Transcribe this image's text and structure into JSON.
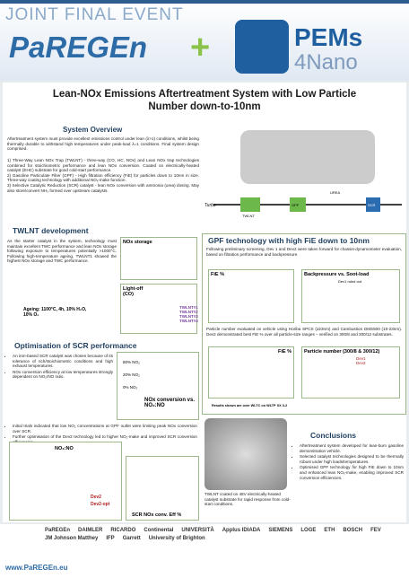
{
  "header": {
    "banner": "JOINT FINAL EVENT",
    "logo_left": "PaREGEn",
    "plus": "+",
    "logo_right_top": "PEMs",
    "logo_right_bottom": "4Nano"
  },
  "title": "Lean-NOx Emissions Aftertreatment System with Low Particle Number down-to-10nm",
  "overview": {
    "heading": "System Overview",
    "intro": "Aftertreatment system must provide excellent emissions control under lean (λ>1) conditions, whilst being thermally durable to withstand high temperatures under peak-load λ=1 conditions. Final system design comprised.",
    "items": [
      "1) Three-Way Lean NOx Trap (TWLNT) - three-way (CO, HC, NOx) and Lean NOx trap technologies combined for stoichiometric performance and lean NOx conversion. Coated on electrically-heated catalyst (EHC) substrate for good cold-start performance.",
      "2) Gasoline Particulate Filter (GPF) - High filtration efficiency (FiE) for particles down to 10nm in size. Three-way coating technology with additional NOₓ-make function.",
      "3) Selective Catalytic Reduction (SCR) catalyst - lean NOx conversion with ammonia (urea) dosing. May also store/convert NH₃ formed over upstream catalysts."
    ]
  },
  "diagram": {
    "turbo": "Turbo",
    "twlnt": "TWLNT",
    "gpf": "GPF",
    "urea": "UREA",
    "scr": "SCR"
  },
  "twlnt": {
    "heading": "TWLNT development",
    "text": "As the starter catalyst in the system, technology must maintain excellent TWC performance and lean NOx storage following exposure to temperatures potentially >1000°C. Following high-temperature ageing, TWLNT1 showed the highest NOx storage and TWC performance.",
    "chart_storage": "NOx storage",
    "chart_lightoff": "Light-off (CO)",
    "ageing": "Ageing: 1100°C, 4h, 10% H₂O, 10% O₂",
    "legend": [
      "TWLNT#1",
      "TWLNT#2",
      "TWLNT#3",
      "TWLNT#4"
    ]
  },
  "gpf": {
    "heading": "GPF technology with high FiE down to 10nm",
    "text1": "Following preliminary screening, Dev 1 and Dev2 were taken forward for chassis-dynamometer evaluation, based on filtration performance and backpressure.",
    "chart_fie": "FiE %",
    "chart_bp": "Backpressure vs. Soot-load",
    "bp_note": "Dev1 ruled out",
    "text2": "Particle number evaluated on vehicle using Horiba SPCS (≥23nm) and Cambustion DMS500 (10-23nm). Dev2 demonstrated best FiE % over all particle-size ranges – verified on 300/8 and 300/12 substrates.",
    "chart_fie2": "FiE %",
    "chart_pn": "Particle number (300/8 & 300/12)",
    "pn_dev1": "Dev1",
    "pn_dev2": "Dev2",
    "results_note": "Results shown are over WLTC on WLTP XX 3-2"
  },
  "scr": {
    "heading": "Optimisation of SCR performance",
    "bullets": [
      "An iron-based SCR catalyst was chosen because of its tolerance of rich/stoichiometric conditions and high exhaust temperatures.",
      "NOx conversion efficiency at low temperatures strongly dependent on NO₂/NO ratio.",
      "Initial trials indicated that low NO₂ concentrations at GPF outlet were limiting peak NOx conversion over SCR.",
      "Further optimisation of the Dev2 technology led to higher NO₂-make and improved SCR conversion efficiencies."
    ],
    "c1_labels": [
      "50% NO₂",
      "20% NO₂",
      "0% NO₂"
    ],
    "c1_title": "NOx conversion vs. NO₂:NO",
    "c2_title": "NO₂:NO",
    "c2_legend": [
      "Dev2",
      "Dev2-opt"
    ],
    "c3_title": "SCR NOx conv. Eff %"
  },
  "photo_caption": "TWLNT coated on 48V electrically-heated catalyst substrate for rapid response from cold-start conditions.",
  "conclusions": {
    "heading": "Conclusions",
    "bullets": [
      "Aftertreatment system developed for lean-burn gasoline demonstration vehicle.",
      "Selected catalyst technologies designed to be thermally robust under high loads/temperatures.",
      "Optimised GPF technology for high FiE down to 10nm and enhanced lean NOₓ-make, enabling improved SCR conversion efficiencies."
    ]
  },
  "footer": {
    "logos": [
      "PaREGEn",
      "DAIMLER",
      "RICARDO",
      "Continental",
      "UNIVERSITÀ",
      "Applus IDIADA",
      "SIEMENS",
      "LOGE",
      "ETH",
      "BOSCH",
      "FEV",
      "JM Johnson Matthey",
      "IFP",
      "Garrett",
      "University of Brighton"
    ],
    "url": "www.PaREGEn.eu"
  }
}
